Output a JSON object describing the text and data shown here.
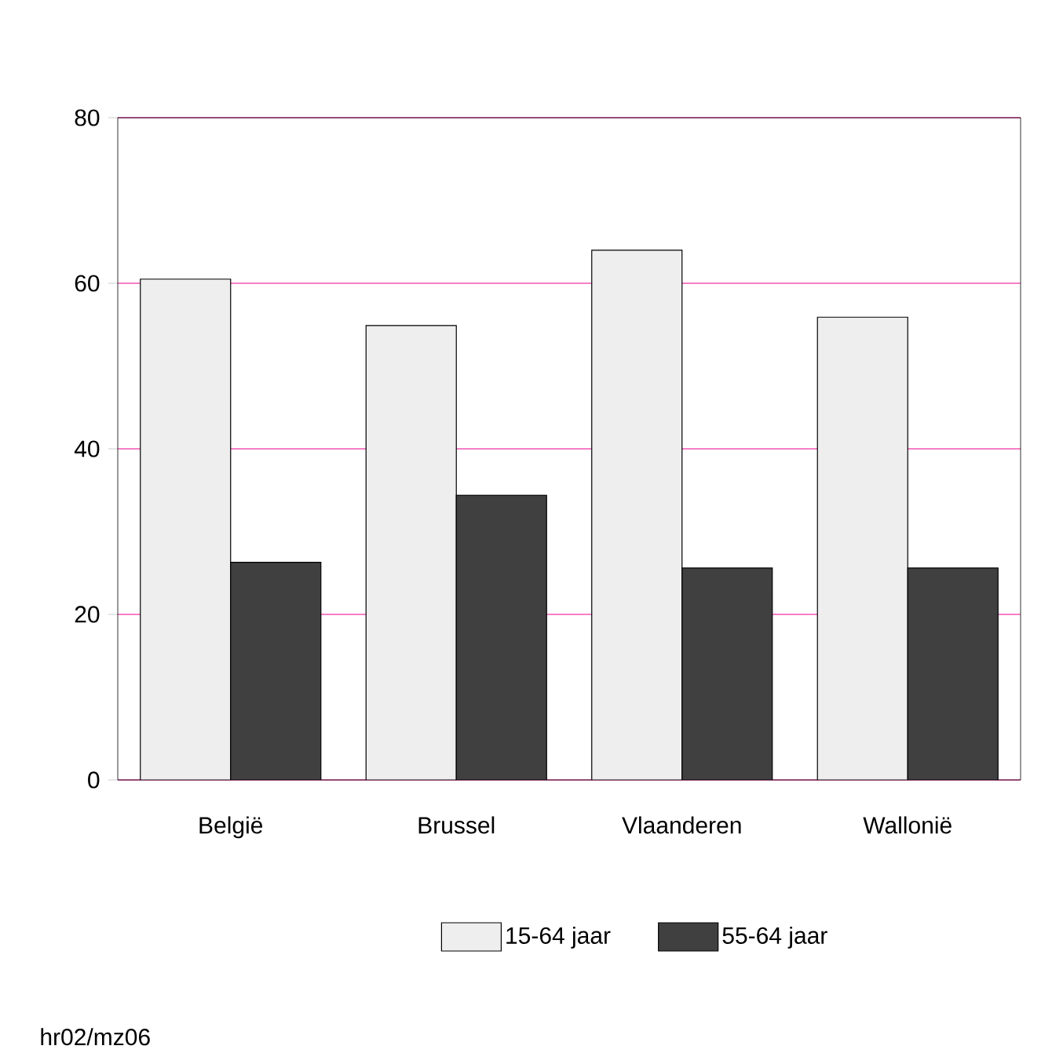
{
  "chart_data": {
    "type": "bar",
    "categories": [
      "België",
      "Brussel",
      "Vlaanderen",
      "Wallonië"
    ],
    "series": [
      {
        "name": "15-64 jaar",
        "color": "#eeeeee",
        "values": [
          60.5,
          54.9,
          64.0,
          55.9
        ]
      },
      {
        "name": "55-64 jaar",
        "color": "#404040",
        "values": [
          26.3,
          34.4,
          25.6,
          25.6
        ]
      }
    ],
    "ylim": [
      0,
      80
    ],
    "yticks": [
      0,
      20,
      40,
      60,
      80
    ],
    "grid": "y",
    "legend": "bottom",
    "annotations": [
      "hr02/mz06"
    ]
  }
}
